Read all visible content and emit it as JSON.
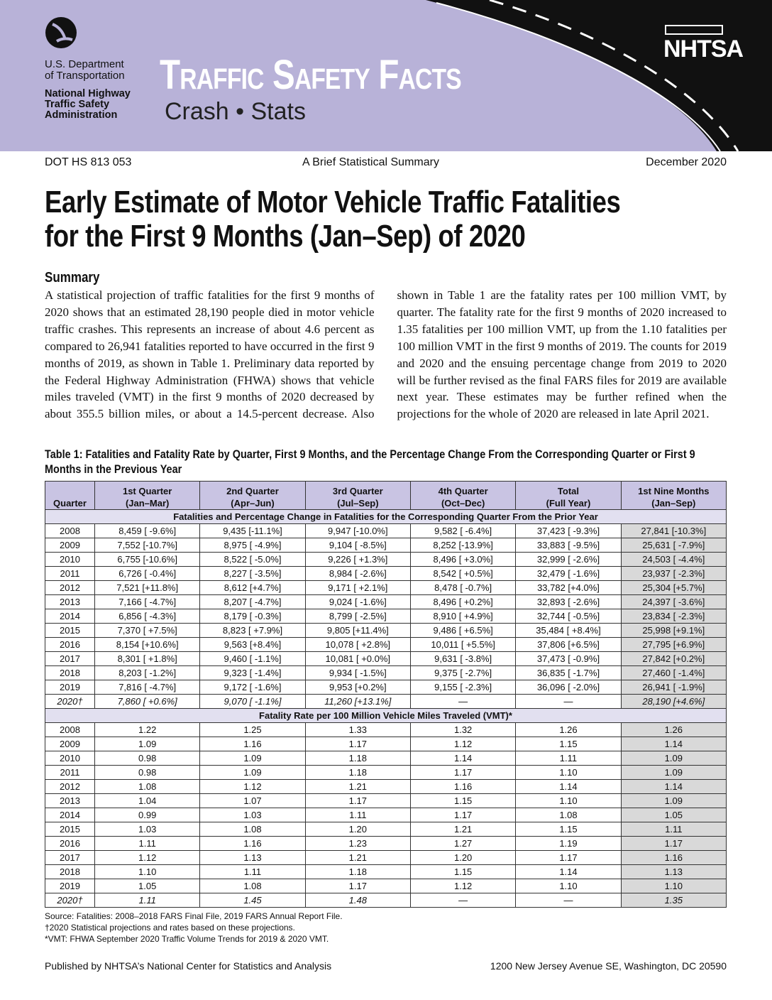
{
  "header": {
    "agency": [
      "U.S. Department",
      "of Transportation"
    ],
    "admin": [
      "National Highway",
      "Traffic Safety",
      "Administration"
    ],
    "series": "Traffic Safety Facts",
    "subseries": "Crash • Stats",
    "logo": "NHTSA"
  },
  "meta": {
    "report": "DOT HS 813 053",
    "kind": "A Brief Statistical Summary",
    "date": "December 2020"
  },
  "title": [
    "Early Estimate of Motor Vehicle Traffic Fatalities",
    "for the First 9 Months (Jan–Sep) of 2020"
  ],
  "summary": {
    "heading": "Summary",
    "text": "A statistical projection of traffic fatalities for the first 9 months of 2020 shows that an estimated 28,190 people died in motor vehicle traffic crashes. This represents an increase of about 4.6 percent as compared to 26,941 fatalities reported to have occurred in the first 9 months of 2019, as shown in Table 1. Preliminary data reported by the Federal Highway Administration (FHWA) shows that vehicle miles traveled (VMT) in the first 9 months of 2020 decreased by about 355.5 billion miles, or about a 14.5-percent decrease. Also shown in Table 1 are the fatality rates per 100 million VMT, by quarter. The fatality rate for the first 9 months of 2020 increased to 1.35 fatalities per 100 million VMT, up from the 1.10 fatalities per 100 million VMT in the first 9 months of 2019. The counts for 2019 and 2020 and the ensuing percentage change from 2019 to 2020 will be further revised as the final FARS files for 2019 are available next year. These estimates may be further refined when the projections for the whole of 2020 are released in late April 2021."
  },
  "table": {
    "caption": "Table 1: Fatalities and Fatality Rate by Quarter, First 9 Months, and the Percentage Change From the Corresponding Quarter or First 9 Months in the Previous Year",
    "header": [
      [
        "",
        "Quarter"
      ],
      [
        "1st Quarter",
        "(Jan–Mar)"
      ],
      [
        "2nd Quarter",
        "(Apr–Jun)"
      ],
      [
        "3rd Quarter",
        "(Jul–Sep)"
      ],
      [
        "4th Quarter",
        "(Oct–Dec)"
      ],
      [
        "Total",
        "(Full Year)"
      ],
      [
        "1st Nine Months",
        "(Jan–Sep)"
      ]
    ],
    "sections": [
      {
        "title": "Fatalities and Percentage Change in Fatalities for the Corresponding Quarter From the Prior Year",
        "rows": [
          [
            "2008",
            "8,459 [ -9.6%]",
            "9,435 [-11.1%]",
            "9,947 [-10.0%]",
            "9,582 [ -6.4%]",
            "37,423 [ -9.3%]",
            "27,841 [-10.3%]"
          ],
          [
            "2009",
            "7,552 [-10.7%]",
            "8,975 [ -4.9%]",
            "9,104 [ -8.5%]",
            "8,252 [-13.9%]",
            "33,883 [ -9.5%]",
            "25,631 [ -7.9%]"
          ],
          [
            "2010",
            "6,755 [-10.6%]",
            "8,522 [ -5.0%]",
            "9,226 [ +1.3%]",
            "8,496 [ +3.0%]",
            "32,999 [ -2.6%]",
            "24,503 [ -4.4%]"
          ],
          [
            "2011",
            "6,726 [ -0.4%]",
            "8,227 [ -3.5%]",
            "8,984 [ -2.6%]",
            "8,542 [ +0.5%]",
            "32,479 [ -1.6%]",
            "23,937 [ -2.3%]"
          ],
          [
            "2012",
            "7,521 [+11.8%]",
            "8,612 [+4.7%]",
            "9,171 [ +2.1%]",
            "8,478 [ -0.7%]",
            "33,782 [+4.0%]",
            "25,304 [+5.7%]"
          ],
          [
            "2013",
            "7,166 [ -4.7%]",
            "8,207 [ -4.7%]",
            "9,024 [ -1.6%]",
            "8,496 [ +0.2%]",
            "32,893 [ -2.6%]",
            "24,397 [ -3.6%]"
          ],
          [
            "2014",
            "6,856 [ -4.3%]",
            "8,179 [ -0.3%]",
            "8,799 [ -2.5%]",
            "8,910 [ +4.9%]",
            "32,744 [ -0.5%]",
            "23,834 [ -2.3%]"
          ],
          [
            "2015",
            "7,370 [ +7.5%]",
            "8,823 [ +7.9%]",
            "9,805 [+11.4%]",
            "9,486 [ +6.5%]",
            "35,484 [ +8.4%]",
            "25,998 [+9.1%]"
          ],
          [
            "2016",
            "8,154 [+10.6%]",
            "9,563 [+8.4%]",
            "10,078 [ +2.8%]",
            "10,011 [ +5.5%]",
            "37,806 [+6.5%]",
            "27,795 [+6.9%]"
          ],
          [
            "2017",
            "8,301 [ +1.8%]",
            "9,460 [ -1.1%]",
            "10,081 [ +0.0%]",
            "9,631 [ -3.8%]",
            "37,473 [ -0.9%]",
            "27,842 [+0.2%]"
          ],
          [
            "2018",
            "8,203 [ -1.2%]",
            "9,323 [ -1.4%]",
            "9,934 [ -1.5%]",
            "9,375 [ -2.7%]",
            "36,835 [ -1.7%]",
            "27,460 [ -1.4%]"
          ],
          [
            "2019",
            "7,816 [ -4.7%]",
            "9,172 [ -1.6%]",
            "9,953 [+0.2%]",
            "9,155 [ -2.3%]",
            "36,096 [ -2.0%]",
            "26,941 [ -1.9%]"
          ],
          [
            "2020†",
            "7,860 [ +0.6%]",
            "9,070 [ -1.1%]",
            "11,260 [+13.1%]",
            "—",
            "—",
            "28,190 [+4.6%]"
          ]
        ]
      },
      {
        "title": "Fatality Rate per 100 Million Vehicle Miles Traveled (VMT)*",
        "rows": [
          [
            "2008",
            "1.22",
            "1.25",
            "1.33",
            "1.32",
            "1.26",
            "1.26"
          ],
          [
            "2009",
            "1.09",
            "1.16",
            "1.17",
            "1.12",
            "1.15",
            "1.14"
          ],
          [
            "2010",
            "0.98",
            "1.09",
            "1.18",
            "1.14",
            "1.11",
            "1.09"
          ],
          [
            "2011",
            "0.98",
            "1.09",
            "1.18",
            "1.17",
            "1.10",
            "1.09"
          ],
          [
            "2012",
            "1.08",
            "1.12",
            "1.21",
            "1.16",
            "1.14",
            "1.14"
          ],
          [
            "2013",
            "1.04",
            "1.07",
            "1.17",
            "1.15",
            "1.10",
            "1.09"
          ],
          [
            "2014",
            "0.99",
            "1.03",
            "1.11",
            "1.17",
            "1.08",
            "1.05"
          ],
          [
            "2015",
            "1.03",
            "1.08",
            "1.20",
            "1.21",
            "1.15",
            "1.11"
          ],
          [
            "2016",
            "1.11",
            "1.16",
            "1.23",
            "1.27",
            "1.19",
            "1.17"
          ],
          [
            "2017",
            "1.12",
            "1.13",
            "1.21",
            "1.20",
            "1.17",
            "1.16"
          ],
          [
            "2018",
            "1.10",
            "1.11",
            "1.18",
            "1.15",
            "1.14",
            "1.13"
          ],
          [
            "2019",
            "1.05",
            "1.08",
            "1.17",
            "1.12",
            "1.10",
            "1.10"
          ],
          [
            "2020†",
            "1.11",
            "1.45",
            "1.48",
            "—",
            "—",
            "1.35"
          ]
        ]
      }
    ],
    "notes": [
      "Source: Fatalities: 2008–2018 FARS Final File, 2019 FARS Annual Report File.",
      "†2020 Statistical projections and rates based on these projections.",
      "*VMT: FHWA September 2020 Traffic Volume Trends for 2019 & 2020 VMT."
    ]
  },
  "footer": {
    "left": "Published by NHTSA’s National Center for Statistics and Analysis",
    "right": "1200 New Jersey Avenue SE, Washington, DC 20590"
  }
}
